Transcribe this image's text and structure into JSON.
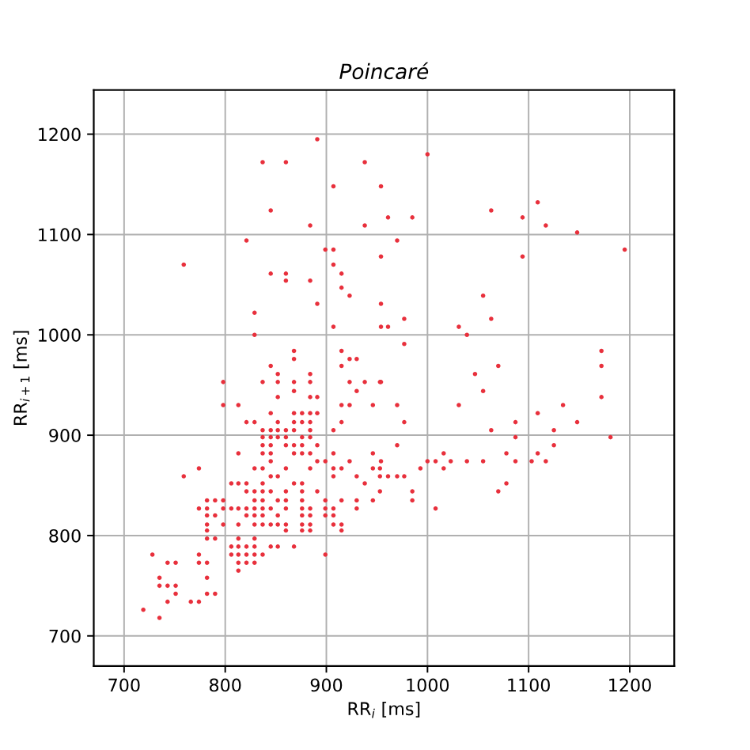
{
  "chart_data": {
    "type": "scatter",
    "title": "Poincaré",
    "xlabel": "RR$_{i}$ [ms]",
    "ylabel": "RR$_{i+1}$ [ms]",
    "xlim": [
      670,
      1244
    ],
    "ylim": [
      670,
      1244
    ],
    "xticks": [
      700,
      800,
      900,
      1000,
      1100,
      1200
    ],
    "yticks": [
      700,
      800,
      900,
      1000,
      1100,
      1200
    ],
    "grid": true,
    "marker": "circle",
    "series": [
      {
        "color": "#e8303c",
        "x": [
          891,
          837,
          860,
          938,
          907,
          954,
          845,
          961,
          884,
          938,
          821,
          899,
          907,
          954,
          759,
          907,
          845,
          860,
          860,
          884,
          915,
          915,
          923,
          891,
          954,
          829,
          907,
          954,
          961,
          829,
          868,
          868,
          915,
          923,
          930,
          915,
          845,
          852,
          884,
          1000,
          985,
          1063,
          1094,
          1109,
          1117,
          1148,
          970,
          1094,
          1195,
          1055,
          977,
          1063,
          1031,
          1039,
          977,
          1172,
          1172,
          1070,
          1047,
          1055,
          953,
          970,
          1031,
          1172,
          977,
          1109,
          1134,
          1148,
          1087,
          1063,
          1125,
          1087,
          1181,
          970,
          1125,
          1016,
          1078,
          1109,
          953,
          993,
          1016,
          1000,
          1008,
          1023,
          1039,
          1055,
          1087,
          1103,
          1117,
          953,
          961,
          970,
          977,
          1078,
          953,
          985,
          1070,
          985,
          1008,
          798,
          837,
          852,
          868,
          884,
          923,
          938,
          954,
          868,
          930,
          852,
          884,
          891,
          798,
          813,
          915,
          923,
          946,
          845,
          868,
          876,
          884,
          891,
          821,
          829,
          852,
          868,
          876,
          884,
          915,
          837,
          845,
          852,
          860,
          868,
          884,
          907,
          837,
          845,
          852,
          860,
          876,
          884,
          837,
          845,
          860,
          868,
          876,
          891,
          813,
          837,
          845,
          868,
          876,
          884,
          907,
          946,
          845,
          891,
          899,
          923,
          954,
          774,
          829,
          837,
          860,
          884,
          907,
          915,
          946,
          759,
          845,
          852,
          907,
          930,
          806,
          813,
          821,
          837,
          868,
          876,
          938,
          821,
          829,
          837,
          845,
          860,
          876,
          891,
          782,
          790,
          798,
          829,
          837,
          852,
          860,
          876,
          899,
          915,
          930,
          946,
          774,
          782,
          798,
          806,
          813,
          821,
          829,
          837,
          845,
          860,
          876,
          884,
          899,
          907,
          930,
          782,
          790,
          821,
          829,
          837,
          852,
          876,
          884,
          899,
          907,
          782,
          798,
          813,
          829,
          837,
          845,
          852,
          860,
          876,
          884,
          907,
          915,
          782,
          860,
          876,
          884,
          915,
          782,
          790,
          813,
          829,
          806,
          813,
          821,
          829,
          845,
          852,
          868,
          728,
          774,
          806,
          813,
          821,
          829,
          837,
          899,
          743,
          751,
          774,
          782,
          813,
          821,
          829,
          813,
          735,
          782,
          735,
          743,
          751,
          751,
          782,
          790,
          743,
          766,
          774,
          719,
          735
        ],
        "values": [
          1195,
          1172,
          1172,
          1172,
          1148,
          1148,
          1124,
          1117,
          1109,
          1109,
          1094,
          1085,
          1085,
          1078,
          1070,
          1070,
          1061,
          1061,
          1054,
          1054,
          1061,
          1047,
          1039,
          1031,
          1031,
          1022,
          1008,
          1008,
          1008,
          1000,
          984,
          976,
          984,
          976,
          976,
          969,
          969,
          961,
          961,
          1180,
          1117,
          1124,
          1117,
          1132,
          1109,
          1102,
          1094,
          1078,
          1085,
          1039,
          1016,
          1016,
          1008,
          1000,
          991,
          984,
          969,
          969,
          961,
          944,
          953,
          930,
          930,
          938,
          913,
          922,
          930,
          913,
          913,
          905,
          905,
          898,
          898,
          890,
          890,
          882,
          882,
          882,
          867,
          867,
          867,
          874,
          874,
          874,
          874,
          874,
          874,
          874,
          874,
          859,
          859,
          859,
          859,
          852,
          844,
          844,
          844,
          835,
          827,
          953,
          953,
          953,
          953,
          953,
          953,
          953,
          953,
          944,
          944,
          938,
          938,
          938,
          930,
          930,
          930,
          930,
          930,
          922,
          922,
          922,
          922,
          922,
          913,
          913,
          913,
          913,
          913,
          913,
          913,
          905,
          905,
          905,
          905,
          905,
          905,
          905,
          898,
          898,
          898,
          898,
          898,
          898,
          890,
          890,
          890,
          890,
          890,
          890,
          882,
          882,
          882,
          882,
          882,
          882,
          882,
          882,
          874,
          874,
          874,
          874,
          874,
          867,
          867,
          867,
          867,
          867,
          867,
          867,
          867,
          859,
          859,
          859,
          859,
          859,
          852,
          852,
          852,
          852,
          852,
          852,
          852,
          844,
          844,
          844,
          844,
          844,
          844,
          844,
          835,
          835,
          835,
          835,
          835,
          835,
          835,
          835,
          835,
          835,
          835,
          835,
          827,
          827,
          827,
          827,
          827,
          827,
          827,
          827,
          827,
          827,
          827,
          827,
          827,
          827,
          827,
          820,
          820,
          820,
          820,
          820,
          820,
          820,
          820,
          820,
          820,
          811,
          811,
          811,
          811,
          811,
          811,
          811,
          811,
          811,
          811,
          811,
          811,
          805,
          805,
          805,
          805,
          805,
          797,
          797,
          797,
          797,
          789,
          789,
          789,
          789,
          789,
          789,
          789,
          781,
          781,
          781,
          781,
          781,
          781,
          781,
          781,
          773,
          773,
          773,
          773,
          773,
          773,
          773,
          765,
          758,
          758,
          750,
          750,
          750,
          742,
          742,
          742,
          734,
          734,
          734,
          726,
          718
        ]
      }
    ]
  }
}
